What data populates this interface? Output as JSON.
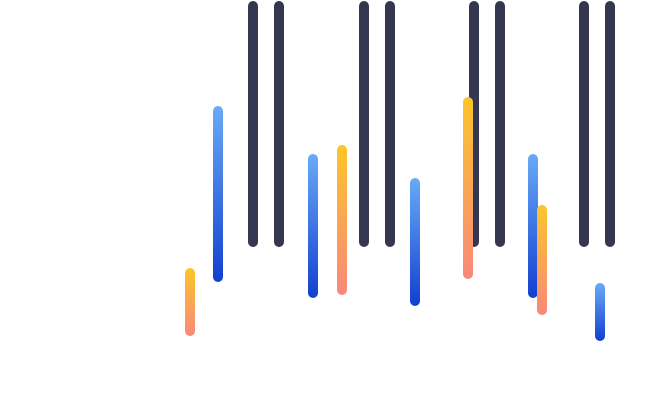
{
  "colors": {
    "background": "#ffffff",
    "dark": "#353650",
    "blue_top": "#6aaaf7",
    "blue_bottom": "#1240d0",
    "orange_top": "#fcc52a",
    "orange_bottom": "#f9887a"
  },
  "bar_groups": [
    {
      "name": "dark-bar-pair-1",
      "style": "dark"
    },
    {
      "name": "dark-bar-pair-2",
      "style": "dark"
    },
    {
      "name": "dark-bar-pair-3",
      "style": "dark"
    },
    {
      "name": "dark-bar-pair-4",
      "style": "dark"
    }
  ]
}
